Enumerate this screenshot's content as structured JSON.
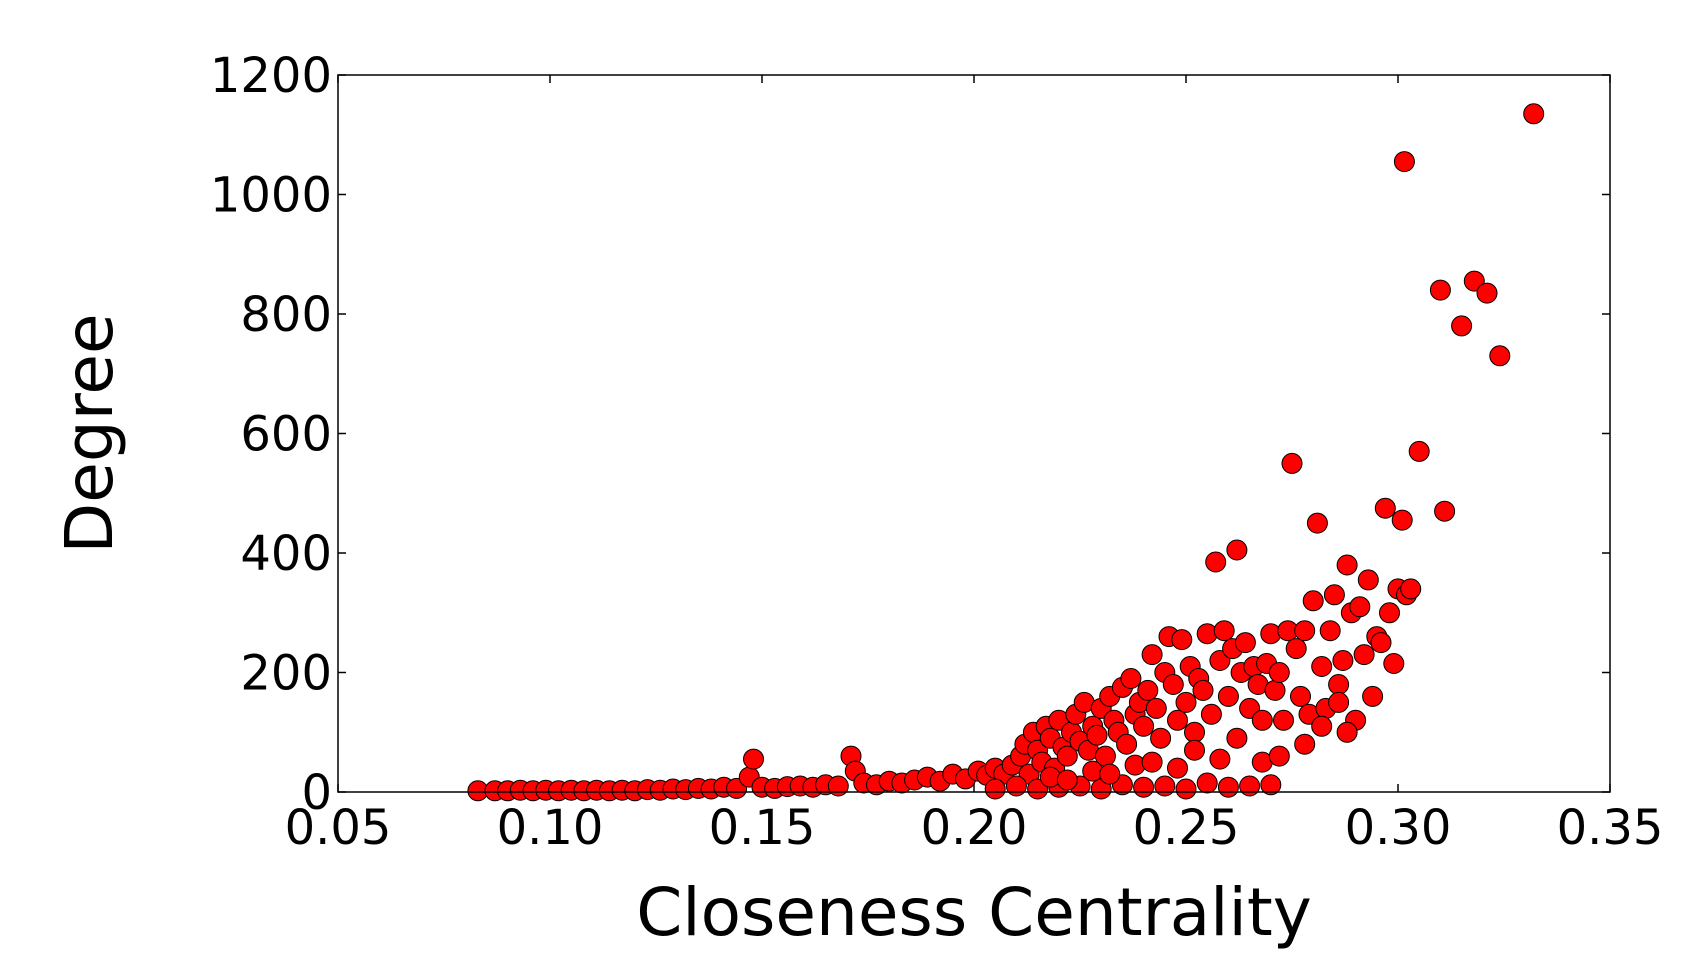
{
  "chart_data": {
    "type": "scatter",
    "title": "",
    "xlabel": "Closeness Centrality",
    "ylabel": "Degree",
    "xlim": [
      0.05,
      0.35
    ],
    "ylim": [
      0,
      1200
    ],
    "xticks": [
      "0.05",
      "0.10",
      "0.15",
      "0.20",
      "0.25",
      "0.30",
      "0.35"
    ],
    "yticks": [
      "0",
      "200",
      "400",
      "600",
      "800",
      "1000",
      "1200"
    ],
    "grid": false,
    "legend": "none",
    "marker_color": "#ff0000",
    "marker_edge_color": "#000000",
    "series": [
      {
        "points": [
          [
            0.083,
            2
          ],
          [
            0.087,
            2
          ],
          [
            0.09,
            2
          ],
          [
            0.093,
            3
          ],
          [
            0.096,
            2
          ],
          [
            0.099,
            3
          ],
          [
            0.102,
            2
          ],
          [
            0.105,
            3
          ],
          [
            0.108,
            2
          ],
          [
            0.111,
            3
          ],
          [
            0.114,
            2
          ],
          [
            0.117,
            3
          ],
          [
            0.12,
            2
          ],
          [
            0.123,
            4
          ],
          [
            0.126,
            3
          ],
          [
            0.129,
            5
          ],
          [
            0.132,
            4
          ],
          [
            0.135,
            6
          ],
          [
            0.138,
            5
          ],
          [
            0.141,
            8
          ],
          [
            0.144,
            6
          ],
          [
            0.147,
            25
          ],
          [
            0.148,
            55
          ],
          [
            0.15,
            8
          ],
          [
            0.153,
            6
          ],
          [
            0.156,
            9
          ],
          [
            0.159,
            10
          ],
          [
            0.162,
            8
          ],
          [
            0.165,
            12
          ],
          [
            0.168,
            10
          ],
          [
            0.171,
            60
          ],
          [
            0.172,
            35
          ],
          [
            0.174,
            15
          ],
          [
            0.177,
            12
          ],
          [
            0.18,
            18
          ],
          [
            0.183,
            15
          ],
          [
            0.186,
            20
          ],
          [
            0.189,
            25
          ],
          [
            0.192,
            18
          ],
          [
            0.195,
            30
          ],
          [
            0.198,
            22
          ],
          [
            0.201,
            35
          ],
          [
            0.203,
            28
          ],
          [
            0.205,
            40
          ],
          [
            0.207,
            30
          ],
          [
            0.209,
            45
          ],
          [
            0.211,
            60
          ],
          [
            0.212,
            80
          ],
          [
            0.213,
            30
          ],
          [
            0.214,
            100
          ],
          [
            0.215,
            70
          ],
          [
            0.216,
            50
          ],
          [
            0.217,
            110
          ],
          [
            0.218,
            90
          ],
          [
            0.219,
            40
          ],
          [
            0.22,
            120
          ],
          [
            0.221,
            75
          ],
          [
            0.222,
            60
          ],
          [
            0.223,
            100
          ],
          [
            0.224,
            130
          ],
          [
            0.225,
            85
          ],
          [
            0.226,
            150
          ],
          [
            0.227,
            70
          ],
          [
            0.228,
            110
          ],
          [
            0.229,
            95
          ],
          [
            0.23,
            140
          ],
          [
            0.231,
            60
          ],
          [
            0.232,
            160
          ],
          [
            0.233,
            120
          ],
          [
            0.234,
            100
          ],
          [
            0.235,
            175
          ],
          [
            0.236,
            80
          ],
          [
            0.237,
            190
          ],
          [
            0.238,
            130
          ],
          [
            0.239,
            150
          ],
          [
            0.24,
            110
          ],
          [
            0.241,
            170
          ],
          [
            0.242,
            230
          ],
          [
            0.243,
            140
          ],
          [
            0.244,
            90
          ],
          [
            0.245,
            200
          ],
          [
            0.246,
            260
          ],
          [
            0.247,
            180
          ],
          [
            0.248,
            120
          ],
          [
            0.249,
            255
          ],
          [
            0.25,
            150
          ],
          [
            0.251,
            210
          ],
          [
            0.252,
            100
          ],
          [
            0.253,
            190
          ],
          [
            0.254,
            170
          ],
          [
            0.255,
            265
          ],
          [
            0.256,
            130
          ],
          [
            0.257,
            385
          ],
          [
            0.258,
            220
          ],
          [
            0.259,
            270
          ],
          [
            0.26,
            160
          ],
          [
            0.261,
            240
          ],
          [
            0.262,
            405
          ],
          [
            0.263,
            200
          ],
          [
            0.264,
            250
          ],
          [
            0.265,
            140
          ],
          [
            0.266,
            210
          ],
          [
            0.267,
            180
          ],
          [
            0.268,
            120
          ],
          [
            0.269,
            215
          ],
          [
            0.27,
            265
          ],
          [
            0.271,
            170
          ],
          [
            0.272,
            200
          ],
          [
            0.273,
            120
          ],
          [
            0.274,
            270
          ],
          [
            0.275,
            550
          ],
          [
            0.276,
            240
          ],
          [
            0.277,
            160
          ],
          [
            0.278,
            270
          ],
          [
            0.279,
            130
          ],
          [
            0.28,
            320
          ],
          [
            0.281,
            450
          ],
          [
            0.282,
            210
          ],
          [
            0.283,
            140
          ],
          [
            0.284,
            270
          ],
          [
            0.285,
            330
          ],
          [
            0.286,
            180
          ],
          [
            0.287,
            220
          ],
          [
            0.288,
            380
          ],
          [
            0.289,
            300
          ],
          [
            0.29,
            120
          ],
          [
            0.291,
            310
          ],
          [
            0.292,
            230
          ],
          [
            0.293,
            355
          ],
          [
            0.294,
            160
          ],
          [
            0.295,
            260
          ],
          [
            0.296,
            250
          ],
          [
            0.297,
            475
          ],
          [
            0.298,
            300
          ],
          [
            0.299,
            215
          ],
          [
            0.3,
            340
          ],
          [
            0.301,
            455
          ],
          [
            0.3015,
            1055
          ],
          [
            0.302,
            330
          ],
          [
            0.303,
            340
          ],
          [
            0.305,
            570
          ],
          [
            0.31,
            840
          ],
          [
            0.311,
            470
          ],
          [
            0.315,
            780
          ],
          [
            0.318,
            855
          ],
          [
            0.321,
            835
          ],
          [
            0.324,
            730
          ],
          [
            0.332,
            1135
          ],
          [
            0.205,
            5
          ],
          [
            0.21,
            10
          ],
          [
            0.215,
            5
          ],
          [
            0.22,
            8
          ],
          [
            0.225,
            10
          ],
          [
            0.23,
            5
          ],
          [
            0.235,
            12
          ],
          [
            0.24,
            8
          ],
          [
            0.245,
            10
          ],
          [
            0.25,
            5
          ],
          [
            0.255,
            15
          ],
          [
            0.26,
            8
          ],
          [
            0.265,
            10
          ],
          [
            0.27,
            12
          ],
          [
            0.218,
            25
          ],
          [
            0.228,
            35
          ],
          [
            0.238,
            45
          ],
          [
            0.248,
            40
          ],
          [
            0.258,
            55
          ],
          [
            0.268,
            50
          ],
          [
            0.278,
            80
          ],
          [
            0.288,
            100
          ],
          [
            0.222,
            20
          ],
          [
            0.232,
            30
          ],
          [
            0.242,
            50
          ],
          [
            0.252,
            70
          ],
          [
            0.262,
            90
          ],
          [
            0.272,
            60
          ],
          [
            0.282,
            110
          ],
          [
            0.286,
            150
          ]
        ]
      }
    ]
  }
}
